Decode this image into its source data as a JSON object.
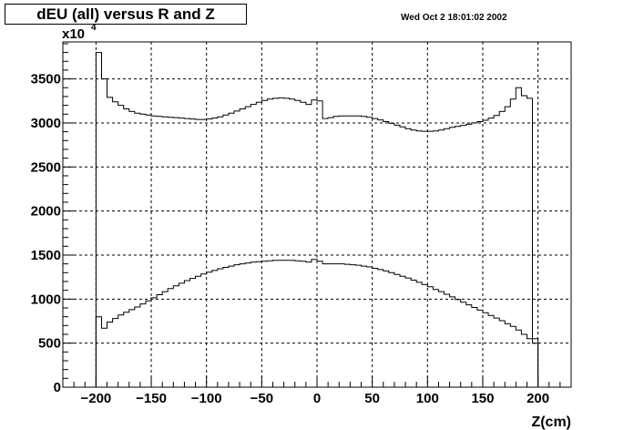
{
  "header": {
    "title": "dEU (all) versus R and Z",
    "timestamp": "Wed Oct  2 18:01:02 2002"
  },
  "chart_data": {
    "type": "line",
    "title": "dEU (all) versus R and Z",
    "xlabel": "Z(cm)",
    "ylabel": "",
    "y_multiplier_label": "x10",
    "y_multiplier_exponent": "4",
    "xlim": [
      -230,
      230
    ],
    "ylim": [
      0,
      3920
    ],
    "x_ticks": [
      -200,
      -150,
      -100,
      -50,
      0,
      50,
      100,
      150,
      200
    ],
    "y_ticks": [
      0,
      500,
      1000,
      1500,
      2000,
      2500,
      3000,
      3500
    ],
    "grid": true,
    "legend": "none",
    "bin_width": 5,
    "series": [
      {
        "values": [
          [
            -200,
            3800
          ],
          [
            -195,
            3500
          ],
          [
            -190,
            3290
          ],
          [
            -185,
            3240
          ],
          [
            -180,
            3200
          ],
          [
            -175,
            3160
          ],
          [
            -170,
            3130
          ],
          [
            -165,
            3110
          ],
          [
            -160,
            3100
          ],
          [
            -155,
            3090
          ],
          [
            -150,
            3080
          ],
          [
            -145,
            3075
          ],
          [
            -140,
            3070
          ],
          [
            -135,
            3065
          ],
          [
            -130,
            3060
          ],
          [
            -125,
            3055
          ],
          [
            -120,
            3050
          ],
          [
            -115,
            3045
          ],
          [
            -110,
            3040
          ],
          [
            -105,
            3040
          ],
          [
            -100,
            3045
          ],
          [
            -95,
            3055
          ],
          [
            -90,
            3070
          ],
          [
            -85,
            3090
          ],
          [
            -80,
            3110
          ],
          [
            -75,
            3135
          ],
          [
            -70,
            3160
          ],
          [
            -65,
            3185
          ],
          [
            -60,
            3210
          ],
          [
            -55,
            3235
          ],
          [
            -50,
            3255
          ],
          [
            -45,
            3270
          ],
          [
            -40,
            3280
          ],
          [
            -35,
            3285
          ],
          [
            -30,
            3280
          ],
          [
            -25,
            3270
          ],
          [
            -20,
            3255
          ],
          [
            -15,
            3235
          ],
          [
            -10,
            3210
          ],
          [
            -5,
            3260
          ],
          [
            0,
            3250
          ],
          [
            5,
            3050
          ],
          [
            10,
            3060
          ],
          [
            15,
            3075
          ],
          [
            20,
            3080
          ],
          [
            25,
            3080
          ],
          [
            30,
            3080
          ],
          [
            35,
            3080
          ],
          [
            40,
            3075
          ],
          [
            45,
            3065
          ],
          [
            50,
            3050
          ],
          [
            55,
            3035
          ],
          [
            60,
            3015
          ],
          [
            65,
            2995
          ],
          [
            70,
            2975
          ],
          [
            75,
            2955
          ],
          [
            80,
            2935
          ],
          [
            85,
            2920
          ],
          [
            90,
            2910
          ],
          [
            95,
            2905
          ],
          [
            100,
            2905
          ],
          [
            105,
            2910
          ],
          [
            110,
            2920
          ],
          [
            115,
            2935
          ],
          [
            120,
            2950
          ],
          [
            125,
            2960
          ],
          [
            130,
            2970
          ],
          [
            135,
            2985
          ],
          [
            140,
            3000
          ],
          [
            145,
            3015
          ],
          [
            150,
            3030
          ],
          [
            155,
            3055
          ],
          [
            160,
            3085
          ],
          [
            165,
            3130
          ],
          [
            170,
            3185
          ],
          [
            175,
            3270
          ],
          [
            180,
            3400
          ],
          [
            185,
            3310
          ],
          [
            190,
            3280
          ],
          [
            195,
            550
          ]
        ]
      },
      {
        "values": [
          [
            -200,
            800
          ],
          [
            -195,
            670
          ],
          [
            -190,
            740
          ],
          [
            -185,
            780
          ],
          [
            -180,
            820
          ],
          [
            -175,
            850
          ],
          [
            -170,
            880
          ],
          [
            -165,
            910
          ],
          [
            -160,
            945
          ],
          [
            -155,
            980
          ],
          [
            -150,
            1015
          ],
          [
            -145,
            1050
          ],
          [
            -140,
            1085
          ],
          [
            -135,
            1120
          ],
          [
            -130,
            1150
          ],
          [
            -125,
            1180
          ],
          [
            -120,
            1210
          ],
          [
            -115,
            1235
          ],
          [
            -110,
            1260
          ],
          [
            -105,
            1285
          ],
          [
            -100,
            1305
          ],
          [
            -95,
            1325
          ],
          [
            -90,
            1345
          ],
          [
            -85,
            1360
          ],
          [
            -80,
            1375
          ],
          [
            -75,
            1390
          ],
          [
            -70,
            1400
          ],
          [
            -65,
            1410
          ],
          [
            -60,
            1420
          ],
          [
            -55,
            1425
          ],
          [
            -50,
            1430
          ],
          [
            -45,
            1435
          ],
          [
            -40,
            1440
          ],
          [
            -35,
            1440
          ],
          [
            -30,
            1440
          ],
          [
            -25,
            1440
          ],
          [
            -20,
            1435
          ],
          [
            -15,
            1430
          ],
          [
            -10,
            1420
          ],
          [
            -5,
            1450
          ],
          [
            0,
            1430
          ],
          [
            5,
            1400
          ],
          [
            10,
            1400
          ],
          [
            15,
            1400
          ],
          [
            20,
            1400
          ],
          [
            25,
            1395
          ],
          [
            30,
            1390
          ],
          [
            35,
            1385
          ],
          [
            40,
            1375
          ],
          [
            45,
            1365
          ],
          [
            50,
            1350
          ],
          [
            55,
            1335
          ],
          [
            60,
            1320
          ],
          [
            65,
            1300
          ],
          [
            70,
            1280
          ],
          [
            75,
            1260
          ],
          [
            80,
            1240
          ],
          [
            85,
            1215
          ],
          [
            90,
            1190
          ],
          [
            95,
            1165
          ],
          [
            100,
            1140
          ],
          [
            105,
            1110
          ],
          [
            110,
            1085
          ],
          [
            115,
            1055
          ],
          [
            120,
            1025
          ],
          [
            125,
            995
          ],
          [
            130,
            965
          ],
          [
            135,
            935
          ],
          [
            140,
            905
          ],
          [
            145,
            875
          ],
          [
            150,
            845
          ],
          [
            155,
            815
          ],
          [
            160,
            785
          ],
          [
            165,
            755
          ],
          [
            170,
            720
          ],
          [
            175,
            690
          ],
          [
            180,
            650
          ],
          [
            185,
            600
          ],
          [
            190,
            550
          ],
          [
            195,
            500
          ]
        ]
      }
    ]
  }
}
